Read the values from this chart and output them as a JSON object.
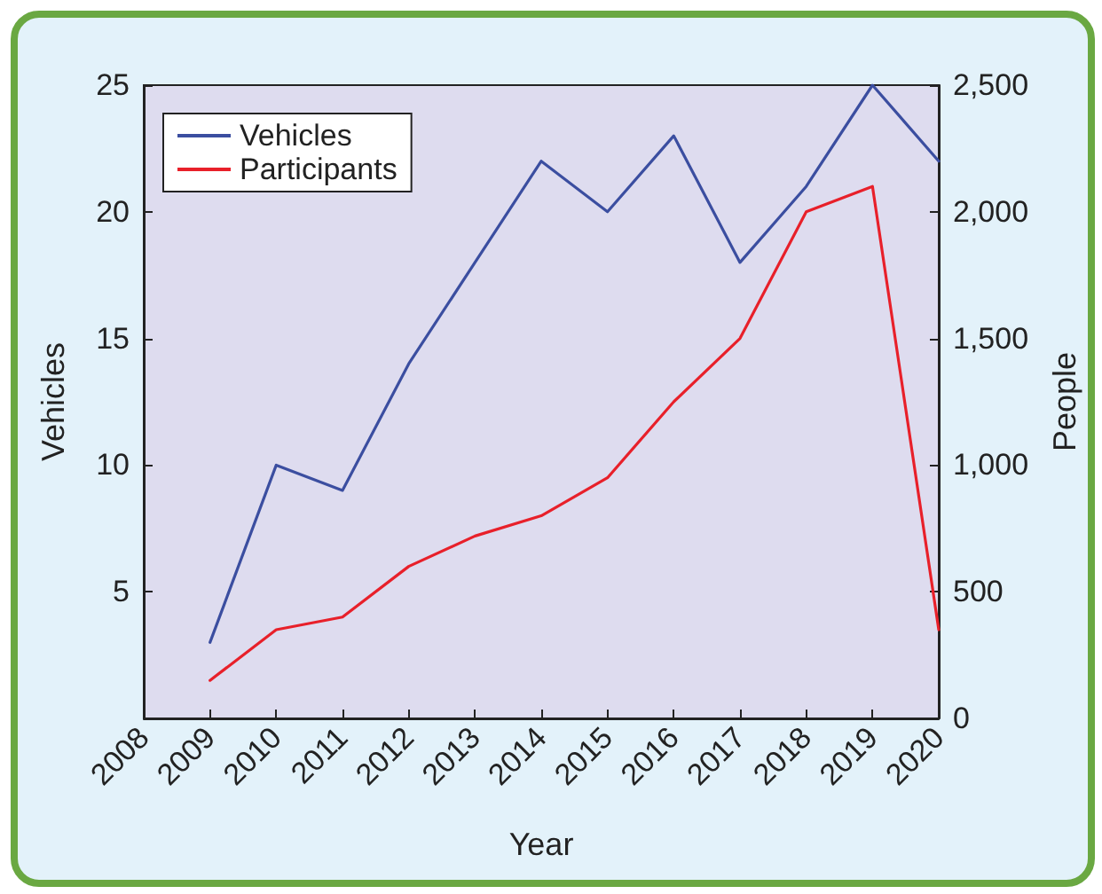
{
  "chart_data": {
    "type": "line",
    "xlabel": "Year",
    "ylabel": "Vehicles",
    "y2label": "People",
    "x": [
      2009,
      2010,
      2011,
      2012,
      2013,
      2014,
      2015,
      2016,
      2017,
      2018,
      2019,
      2020
    ],
    "series": [
      {
        "name": "Vehicles",
        "color": "#3b4ea0",
        "values": [
          3,
          10,
          9,
          14,
          18,
          22,
          20,
          23,
          18,
          21,
          25,
          22
        ]
      },
      {
        "name": "Participants",
        "color": "#e8202a",
        "axis": "y2",
        "values": [
          150,
          350,
          400,
          600,
          720,
          800,
          950,
          1250,
          1500,
          2000,
          2100,
          350
        ]
      }
    ],
    "xlim": [
      2008,
      2020
    ],
    "xticks": [
      2008,
      2009,
      2010,
      2011,
      2012,
      2013,
      2014,
      2015,
      2016,
      2017,
      2018,
      2019,
      2020
    ],
    "ylim": [
      0,
      25
    ],
    "yticks": [
      5,
      10,
      15,
      20,
      25
    ],
    "y2lim": [
      0,
      2500
    ],
    "y2ticks": [
      {
        "value": 0,
        "label": "0"
      },
      {
        "value": 500,
        "label": "500"
      },
      {
        "value": 1000,
        "label": "1,000"
      },
      {
        "value": 1500,
        "label": "1,500"
      },
      {
        "value": 2000,
        "label": "2,000"
      },
      {
        "value": 2500,
        "label": "2,500"
      }
    ],
    "legend": "top left",
    "grid": false,
    "marker": "none",
    "line_style": "solid"
  }
}
